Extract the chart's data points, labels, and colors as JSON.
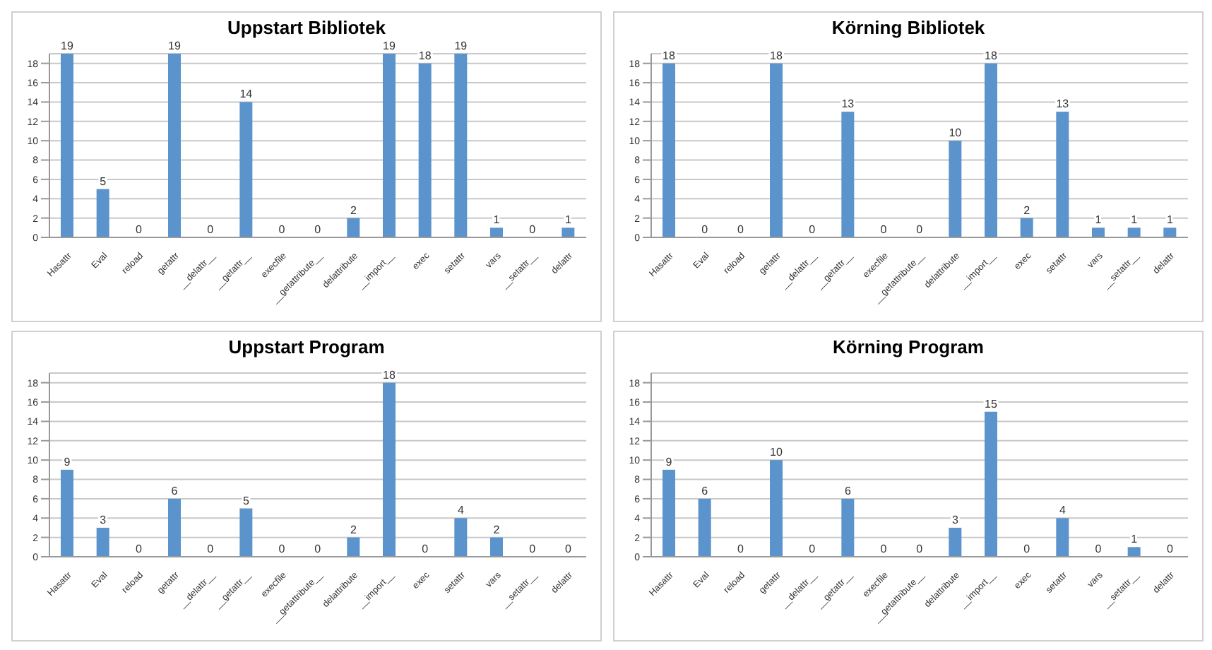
{
  "chart_data": [
    {
      "type": "bar",
      "title": "Uppstart Bibliotek",
      "categories": [
        "Hasattr",
        "Eval",
        "reload",
        "getattr",
        "__delattr__",
        "__getattr__",
        "execfile",
        "__getattribute__",
        "delattribute",
        "__import__",
        "exec",
        "setattr",
        "vars",
        "__setattr__",
        "delattr"
      ],
      "values": [
        19,
        5,
        0,
        19,
        0,
        14,
        0,
        0,
        2,
        19,
        18,
        19,
        1,
        0,
        1
      ],
      "color": "#5b93cc",
      "ylim": [
        0,
        19
      ],
      "yticks": [
        0,
        2,
        4,
        6,
        8,
        10,
        12,
        14,
        16,
        18
      ],
      "grid": "y",
      "data_labels": true
    },
    {
      "type": "bar",
      "title": "Körning Bibliotek",
      "categories": [
        "Hasattr",
        "Eval",
        "reload",
        "getattr",
        "__delattr__",
        "__getattr__",
        "execfile",
        "__getattribute__",
        "delattribute",
        "__import__",
        "exec",
        "setattr",
        "vars",
        "__setattr__",
        "delattr"
      ],
      "values": [
        18,
        0,
        0,
        18,
        0,
        13,
        0,
        0,
        10,
        18,
        2,
        13,
        1,
        1,
        1
      ],
      "color": "#5b93cc",
      "ylim": [
        0,
        19
      ],
      "yticks": [
        0,
        2,
        4,
        6,
        8,
        10,
        12,
        14,
        16,
        18
      ],
      "grid": "y",
      "data_labels": true
    },
    {
      "type": "bar",
      "title": "Uppstart Program",
      "categories": [
        "Hasattr",
        "Eval",
        "reload",
        "getattr",
        "__delattr__",
        "__getattr__",
        "execfile",
        "__getattribute__",
        "delattribute",
        "__import__",
        "exec",
        "setattr",
        "vars",
        "__setattr__",
        "delattr"
      ],
      "values": [
        9,
        3,
        0,
        6,
        0,
        5,
        0,
        0,
        2,
        18,
        0,
        4,
        2,
        0,
        0
      ],
      "color": "#5b93cc",
      "ylim": [
        0,
        19
      ],
      "yticks": [
        0,
        2,
        4,
        6,
        8,
        10,
        12,
        14,
        16,
        18
      ],
      "grid": "y",
      "data_labels": true
    },
    {
      "type": "bar",
      "title": "Körning Program",
      "categories": [
        "Hasattr",
        "Eval",
        "reload",
        "getattr",
        "__delattr__",
        "__getattr__",
        "execfile",
        "__getattribute__",
        "delattribute",
        "__import__",
        "exec",
        "setattr",
        "vars",
        "__setattr__",
        "delattr"
      ],
      "values": [
        9,
        6,
        0,
        10,
        0,
        6,
        0,
        0,
        3,
        15,
        0,
        4,
        0,
        1,
        0
      ],
      "color": "#5b93cc",
      "ylim": [
        0,
        19
      ],
      "yticks": [
        0,
        2,
        4,
        6,
        8,
        10,
        12,
        14,
        16,
        18
      ],
      "grid": "y",
      "data_labels": true
    }
  ]
}
